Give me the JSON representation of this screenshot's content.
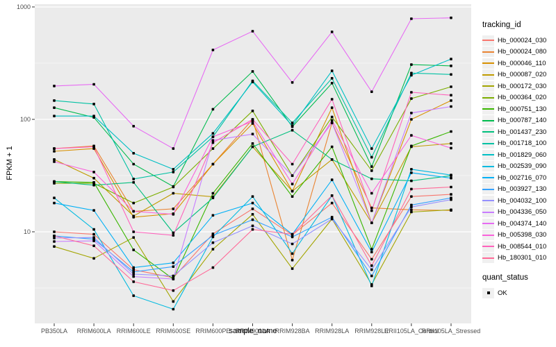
{
  "legend": {
    "tracking_title": "tracking_id",
    "quant_title": "quant_status",
    "quant_ok": "OK"
  },
  "chart_data": {
    "type": "line",
    "title": "",
    "xlabel": "sample_name",
    "ylabel": "FPKM + 1",
    "y_scale": "log10",
    "ylim": [
      1.5,
      1060
    ],
    "yticks": [
      1000,
      100,
      10
    ],
    "y_minor": [
      316.2,
      31.62,
      3.162
    ],
    "grid": true,
    "legend_position": "right",
    "panel_bg": "#EBEBEB",
    "grid_color": "#FFFFFF",
    "point_shape": "square",
    "point_color": "#000000",
    "quant_status": "OK",
    "categories": [
      "PB350LA",
      "RRIM600LA",
      "RRIM600LE",
      "RRIM600SE",
      "RRIM600PE",
      "RRIM901LA",
      "RRIM928BA",
      "RRIM928LA",
      "RRIM928LE",
      "RRII105LA_Control",
      "RRII105LA_Stressed"
    ],
    "series": [
      {
        "name": "Hb_000024_030",
        "color": "#F8766D",
        "values": [
          10,
          9.5,
          4.6,
          3.9,
          9.6,
          16,
          9.4,
          18,
          5.7,
          20.6,
          21.5
        ]
      },
      {
        "name": "Hb_000024_080",
        "color": "#EA8331",
        "values": [
          55,
          58,
          15.2,
          16,
          40,
          100,
          5.6,
          93,
          16.3,
          15.7,
          15.5
        ]
      },
      {
        "name": "Hb_000046_110",
        "color": "#D89000",
        "values": [
          52,
          55,
          13.5,
          14.5,
          40,
          92,
          23,
          127,
          12,
          100,
          147
        ]
      },
      {
        "name": "Hb_000087_020",
        "color": "#C09B00",
        "values": [
          44,
          30,
          13.8,
          22,
          20.5,
          57,
          23,
          44,
          12,
          57,
          61
        ]
      },
      {
        "name": "Hb_000172_030",
        "color": "#A3A500",
        "values": [
          7.4,
          5.8,
          8.9,
          2.4,
          7,
          14.3,
          4.7,
          13,
          3.4,
          15,
          15.7
        ]
      },
      {
        "name": "Hb_000364_020",
        "color": "#7CAE00",
        "values": [
          27,
          27,
          18,
          25,
          55,
          119,
          31.6,
          105,
          35,
          153,
          195
        ]
      },
      {
        "name": "Hb_000751_130",
        "color": "#39B600",
        "values": [
          28,
          27.5,
          6.9,
          3.8,
          22,
          61,
          20.6,
          57,
          7,
          58,
          78
        ]
      },
      {
        "name": "Hb_000787_140",
        "color": "#00BB4E",
        "values": [
          127,
          104,
          40,
          25.3,
          123,
          267,
          86,
          210,
          38,
          307,
          299
        ]
      },
      {
        "name": "Hb_001437_230",
        "color": "#00BF7D",
        "values": [
          28,
          26,
          27.5,
          9.8,
          20,
          57,
          80,
          44,
          29.6,
          28.4,
          31.6
        ]
      },
      {
        "name": "Hb_001718_100",
        "color": "#00C1A3",
        "values": [
          147,
          137,
          29.5,
          34,
          70,
          220,
          93,
          232,
          46,
          258,
          251
        ]
      },
      {
        "name": "Hb_001829_060",
        "color": "#00BFC4",
        "values": [
          107,
          107,
          50,
          36,
          75,
          215,
          88,
          270,
          55,
          247,
          344
        ]
      },
      {
        "name": "Hb_002539_090",
        "color": "#00BAE0",
        "values": [
          20,
          10.5,
          2.7,
          2.05,
          9,
          20.6,
          6.4,
          21,
          3.3,
          36,
          32
        ]
      },
      {
        "name": "Hb_002716_070",
        "color": "#00B0F6",
        "values": [
          18,
          15.5,
          4.8,
          5.3,
          14,
          18,
          9.5,
          29,
          6.6,
          33.5,
          30
        ]
      },
      {
        "name": "Hb_003927_130",
        "color": "#35A2FF",
        "values": [
          9.2,
          8.6,
          4.4,
          4.9,
          9.3,
          12.8,
          9.0,
          13.5,
          4.05,
          17.3,
          20
        ]
      },
      {
        "name": "Hb_004032_100",
        "color": "#9590FF",
        "values": [
          8.8,
          8.9,
          4.2,
          4.05,
          8,
          11.3,
          7.8,
          13,
          4.6,
          16.6,
          19.3
        ]
      },
      {
        "name": "Hb_004336_050",
        "color": "#C77CFF",
        "values": [
          8.2,
          8.3,
          4.0,
          3.8,
          65,
          74,
          31.6,
          93,
          12,
          114,
          130
        ]
      },
      {
        "name": "Hb_004374_140",
        "color": "#E76BF3",
        "values": [
          198,
          205,
          87,
          55,
          414,
          608,
          213,
          600,
          176,
          785,
          800
        ]
      },
      {
        "name": "Hb_005398_030",
        "color": "#FA62DB",
        "values": [
          42,
          34,
          15.2,
          14.3,
          70,
          96,
          26.6,
          98,
          22,
          72,
          55.5
        ]
      },
      {
        "name": "Hb_008544_010",
        "color": "#FF62BC",
        "values": [
          55,
          57,
          10,
          9.3,
          62,
          100,
          40,
          151,
          15.4,
          174,
          164
        ]
      },
      {
        "name": "Hb_180301_010",
        "color": "#FF6A98",
        "values": [
          9.2,
          7.5,
          3.6,
          3.0,
          4.8,
          10.5,
          9.5,
          21,
          5.0,
          24,
          25
        ]
      }
    ]
  }
}
